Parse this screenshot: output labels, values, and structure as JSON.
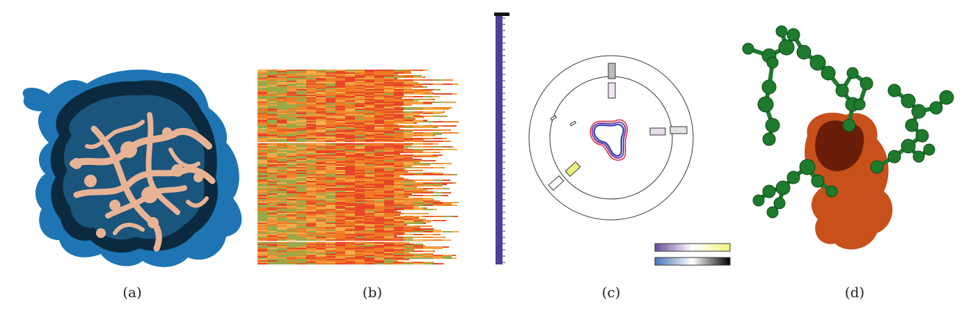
{
  "figure": {
    "captions": [
      "(a)",
      "(b)",
      "(c)",
      "(d)"
    ]
  },
  "colors": {
    "surface_blue": "#1f75b4",
    "surface_dark": "#0b2a40",
    "tunnel_tan": "#e8b395",
    "heat_orange": "#ee7b22",
    "heat_red": "#e8452a",
    "heat_green": "#9aa84a",
    "timeline_purple": "#4a3f9a",
    "ligand_green": "#1e7a2c",
    "cavity_orange": "#c8501a"
  },
  "legend_gradients": [
    {
      "name": "purple-white-yellow",
      "stops": [
        "#6b4a9a",
        "#ffffff",
        "#f2f27a"
      ]
    },
    {
      "name": "blue-white-black",
      "stops": [
        "#4a73b5",
        "#ffffff",
        "#000000"
      ]
    }
  ]
}
